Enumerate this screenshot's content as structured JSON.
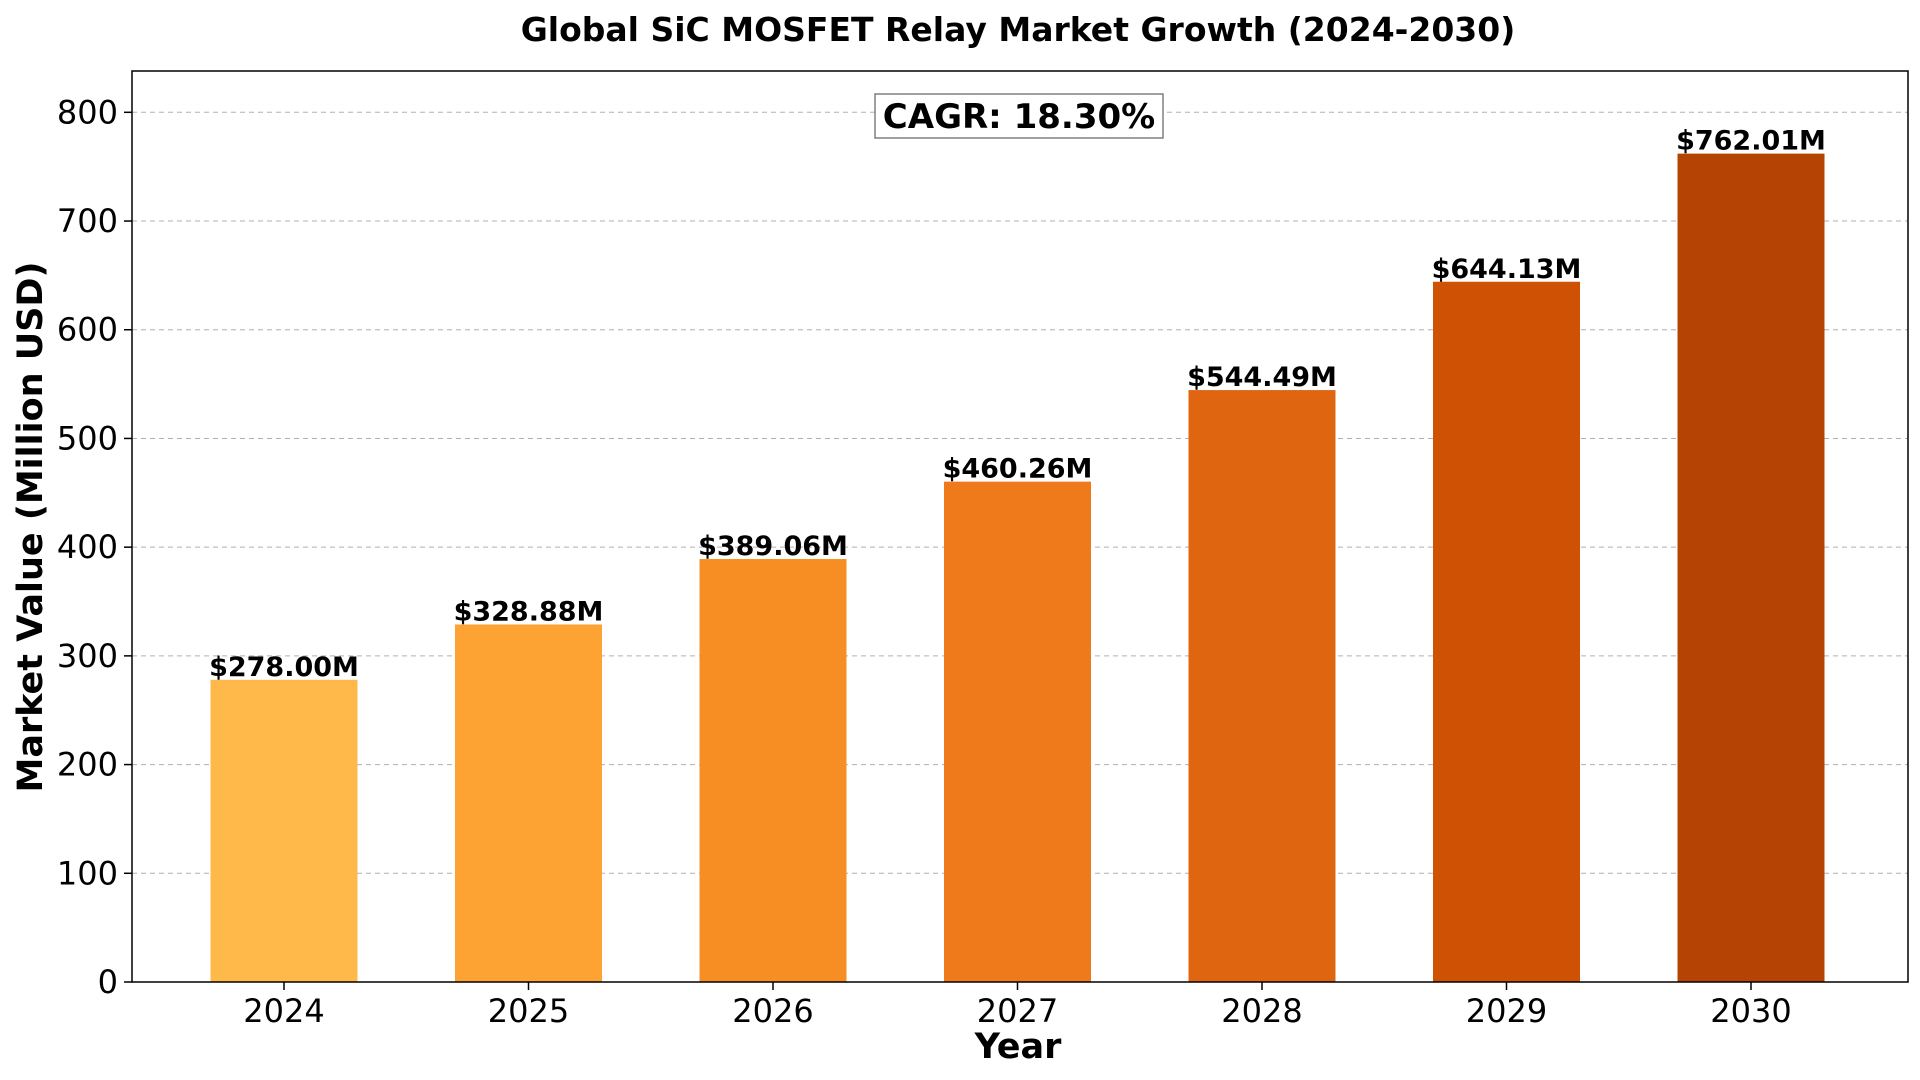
{
  "chart_data": {
    "type": "bar",
    "title": "Global SiC MOSFET Relay Market Growth (2024-2030)",
    "xlabel": "Year",
    "ylabel": "Market Value (Million USD)",
    "categories": [
      "2024",
      "2025",
      "2026",
      "2027",
      "2028",
      "2029",
      "2030"
    ],
    "values": [
      278.0,
      328.88,
      389.06,
      460.26,
      544.49,
      644.13,
      762.01
    ],
    "value_labels": [
      "$278.00M",
      "$328.88M",
      "$389.06M",
      "$460.26M",
      "$544.49M",
      "$644.13M",
      "$762.01M"
    ],
    "ylim": [
      0,
      838
    ],
    "yticks": [
      0,
      100,
      200,
      300,
      400,
      500,
      600,
      700,
      800
    ],
    "ytick_labels": [
      "0",
      "100",
      "200",
      "300",
      "400",
      "500",
      "600",
      "700",
      "800"
    ],
    "grid": "horizontal-dashed",
    "bar_colors": [
      "#FEB94A",
      "#FCA333",
      "#F78E24",
      "#EF7A1B",
      "#E06511",
      "#CE5104",
      "#B54304"
    ],
    "annotation": "CAGR: 18.30%"
  }
}
